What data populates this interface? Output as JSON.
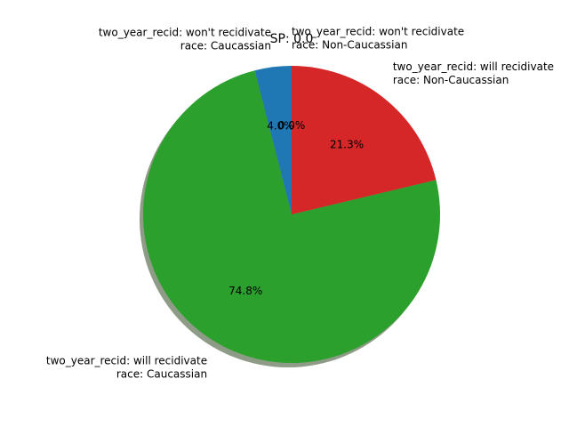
{
  "chart_data": {
    "type": "pie",
    "title": "SP: 0.0",
    "shadow": true,
    "start_angle_deg": 90,
    "direction": "counterclockwise",
    "slices": [
      {
        "label_lines": [
          "two_year_recid: won't recidivate",
          "race: Caucassian"
        ],
        "value": 4.0,
        "pct_label": "4.0%",
        "color": "#1f77b4"
      },
      {
        "label_lines": [
          "two_year_recid: will recidivate",
          "race: Caucassian"
        ],
        "value": 74.8,
        "pct_label": "74.8%",
        "color": "#2ca02c"
      },
      {
        "label_lines": [
          "two_year_recid: will recidivate",
          "race: Non-Caucassian"
        ],
        "value": 21.3,
        "pct_label": "21.3%",
        "color": "#d62728"
      },
      {
        "label_lines": [
          "two_year_recid: won't recidivate",
          "race: Non-Caucassian"
        ],
        "value": 0.0,
        "pct_label": "0.0%",
        "color": "#ff7f0e"
      }
    ]
  }
}
